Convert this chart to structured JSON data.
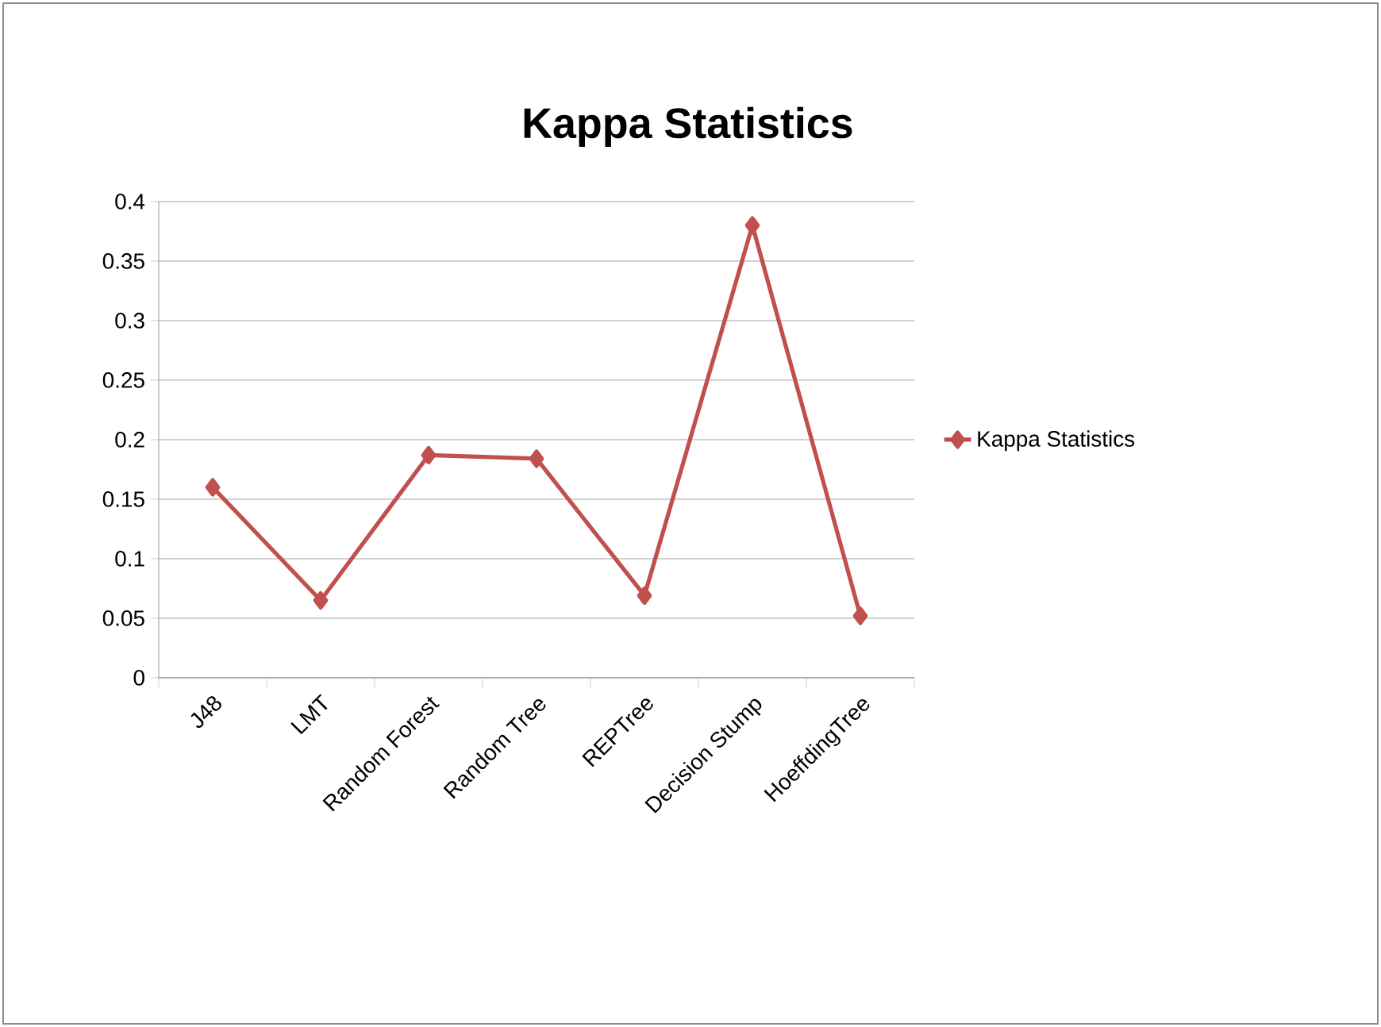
{
  "chart_data": {
    "type": "line",
    "title": "Kappa Statistics",
    "categories": [
      "J48",
      "LMT",
      "Random Forest",
      "Random Tree",
      "REPTree",
      "Decision Stump",
      "HoeffdingTree"
    ],
    "series": [
      {
        "name": "Kappa Statistics",
        "color": "#c0504d",
        "values": [
          0.16,
          0.065,
          0.187,
          0.184,
          0.069,
          0.38,
          0.052
        ]
      }
    ],
    "ylim": [
      0,
      0.4
    ],
    "yticks": [
      0,
      0.05,
      0.1,
      0.15,
      0.2,
      0.25,
      0.3,
      0.35,
      0.4
    ],
    "grid": "y",
    "legend": "right",
    "marker": "diamond",
    "line_style": "solid"
  }
}
